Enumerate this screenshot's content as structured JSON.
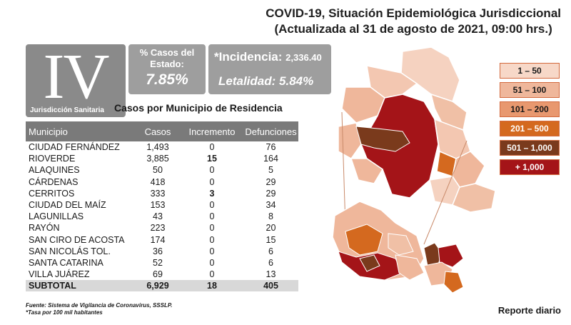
{
  "header": {
    "title_line1": "COVID-19, Situación Epidemiológica Jurisdiccional",
    "title_line2": "(Actualizada al 31 de agosto de 2021, 09:00 hrs.)"
  },
  "badge": {
    "roman": "IV",
    "label": "Jurisdicción Sanitaria"
  },
  "stats": {
    "pct_label": "% Casos del Estado:",
    "pct_value": "7.85%",
    "incidence_label": "*Incidencia:",
    "incidence_value": "2,336.40",
    "lethality_label": "Letalidad:",
    "lethality_value": "5.84%"
  },
  "table": {
    "title": "Casos por Municipio  de Residencia",
    "headers": [
      "Municipio",
      "Casos",
      "Incremento",
      "Defunciones"
    ],
    "rows": [
      [
        "CIUDAD FERNÁNDEZ",
        "1,493",
        "0",
        "76"
      ],
      [
        "RIOVERDE",
        "3,885",
        "15",
        "164"
      ],
      [
        "ALAQUINES",
        "50",
        "0",
        "5"
      ],
      [
        "CÁRDENAS",
        "418",
        "0",
        "29"
      ],
      [
        "CERRITOS",
        "333",
        "3",
        "29"
      ],
      [
        "CIUDAD DEL MAÍZ",
        "153",
        "0",
        "34"
      ],
      [
        "LAGUNILLAS",
        "43",
        "0",
        "8"
      ],
      [
        "RAYÓN",
        "223",
        "0",
        "20"
      ],
      [
        "SAN CIRO DE ACOSTA",
        "174",
        "0",
        "15"
      ],
      [
        "SAN NICOLÁS TOL.",
        "36",
        "0",
        "6"
      ],
      [
        "SANTA CATARINA",
        "52",
        "0",
        "6"
      ],
      [
        "VILLA JUÁREZ",
        "69",
        "0",
        "13"
      ]
    ],
    "subtotal": [
      "SUBTOTAL",
      "6,929",
      "18",
      "405"
    ]
  },
  "footnote": {
    "line1": "Fuente: Sistema de Vigilancia de Coronavirus, SSSLP.",
    "line2": "*Tasa por 100 mil habitantes"
  },
  "report_label": "Reporte diario",
  "legend": [
    {
      "label": "1 – 50",
      "color": "#f7d8c8",
      "text": "#1a1a1a"
    },
    {
      "label": "51 – 100",
      "color": "#efb79b",
      "text": "#1a1a1a"
    },
    {
      "label": "101 – 200",
      "color": "#e8986f",
      "text": "#1a1a1a"
    },
    {
      "label": "201 – 500",
      "color": "#d4691f",
      "text": "#ffffff"
    },
    {
      "label": "501 – 1,000",
      "color": "#7a3a1c",
      "text": "#ffffff"
    },
    {
      "label": "+ 1,000",
      "color": "#a41418",
      "text": "#ffffff"
    }
  ]
}
